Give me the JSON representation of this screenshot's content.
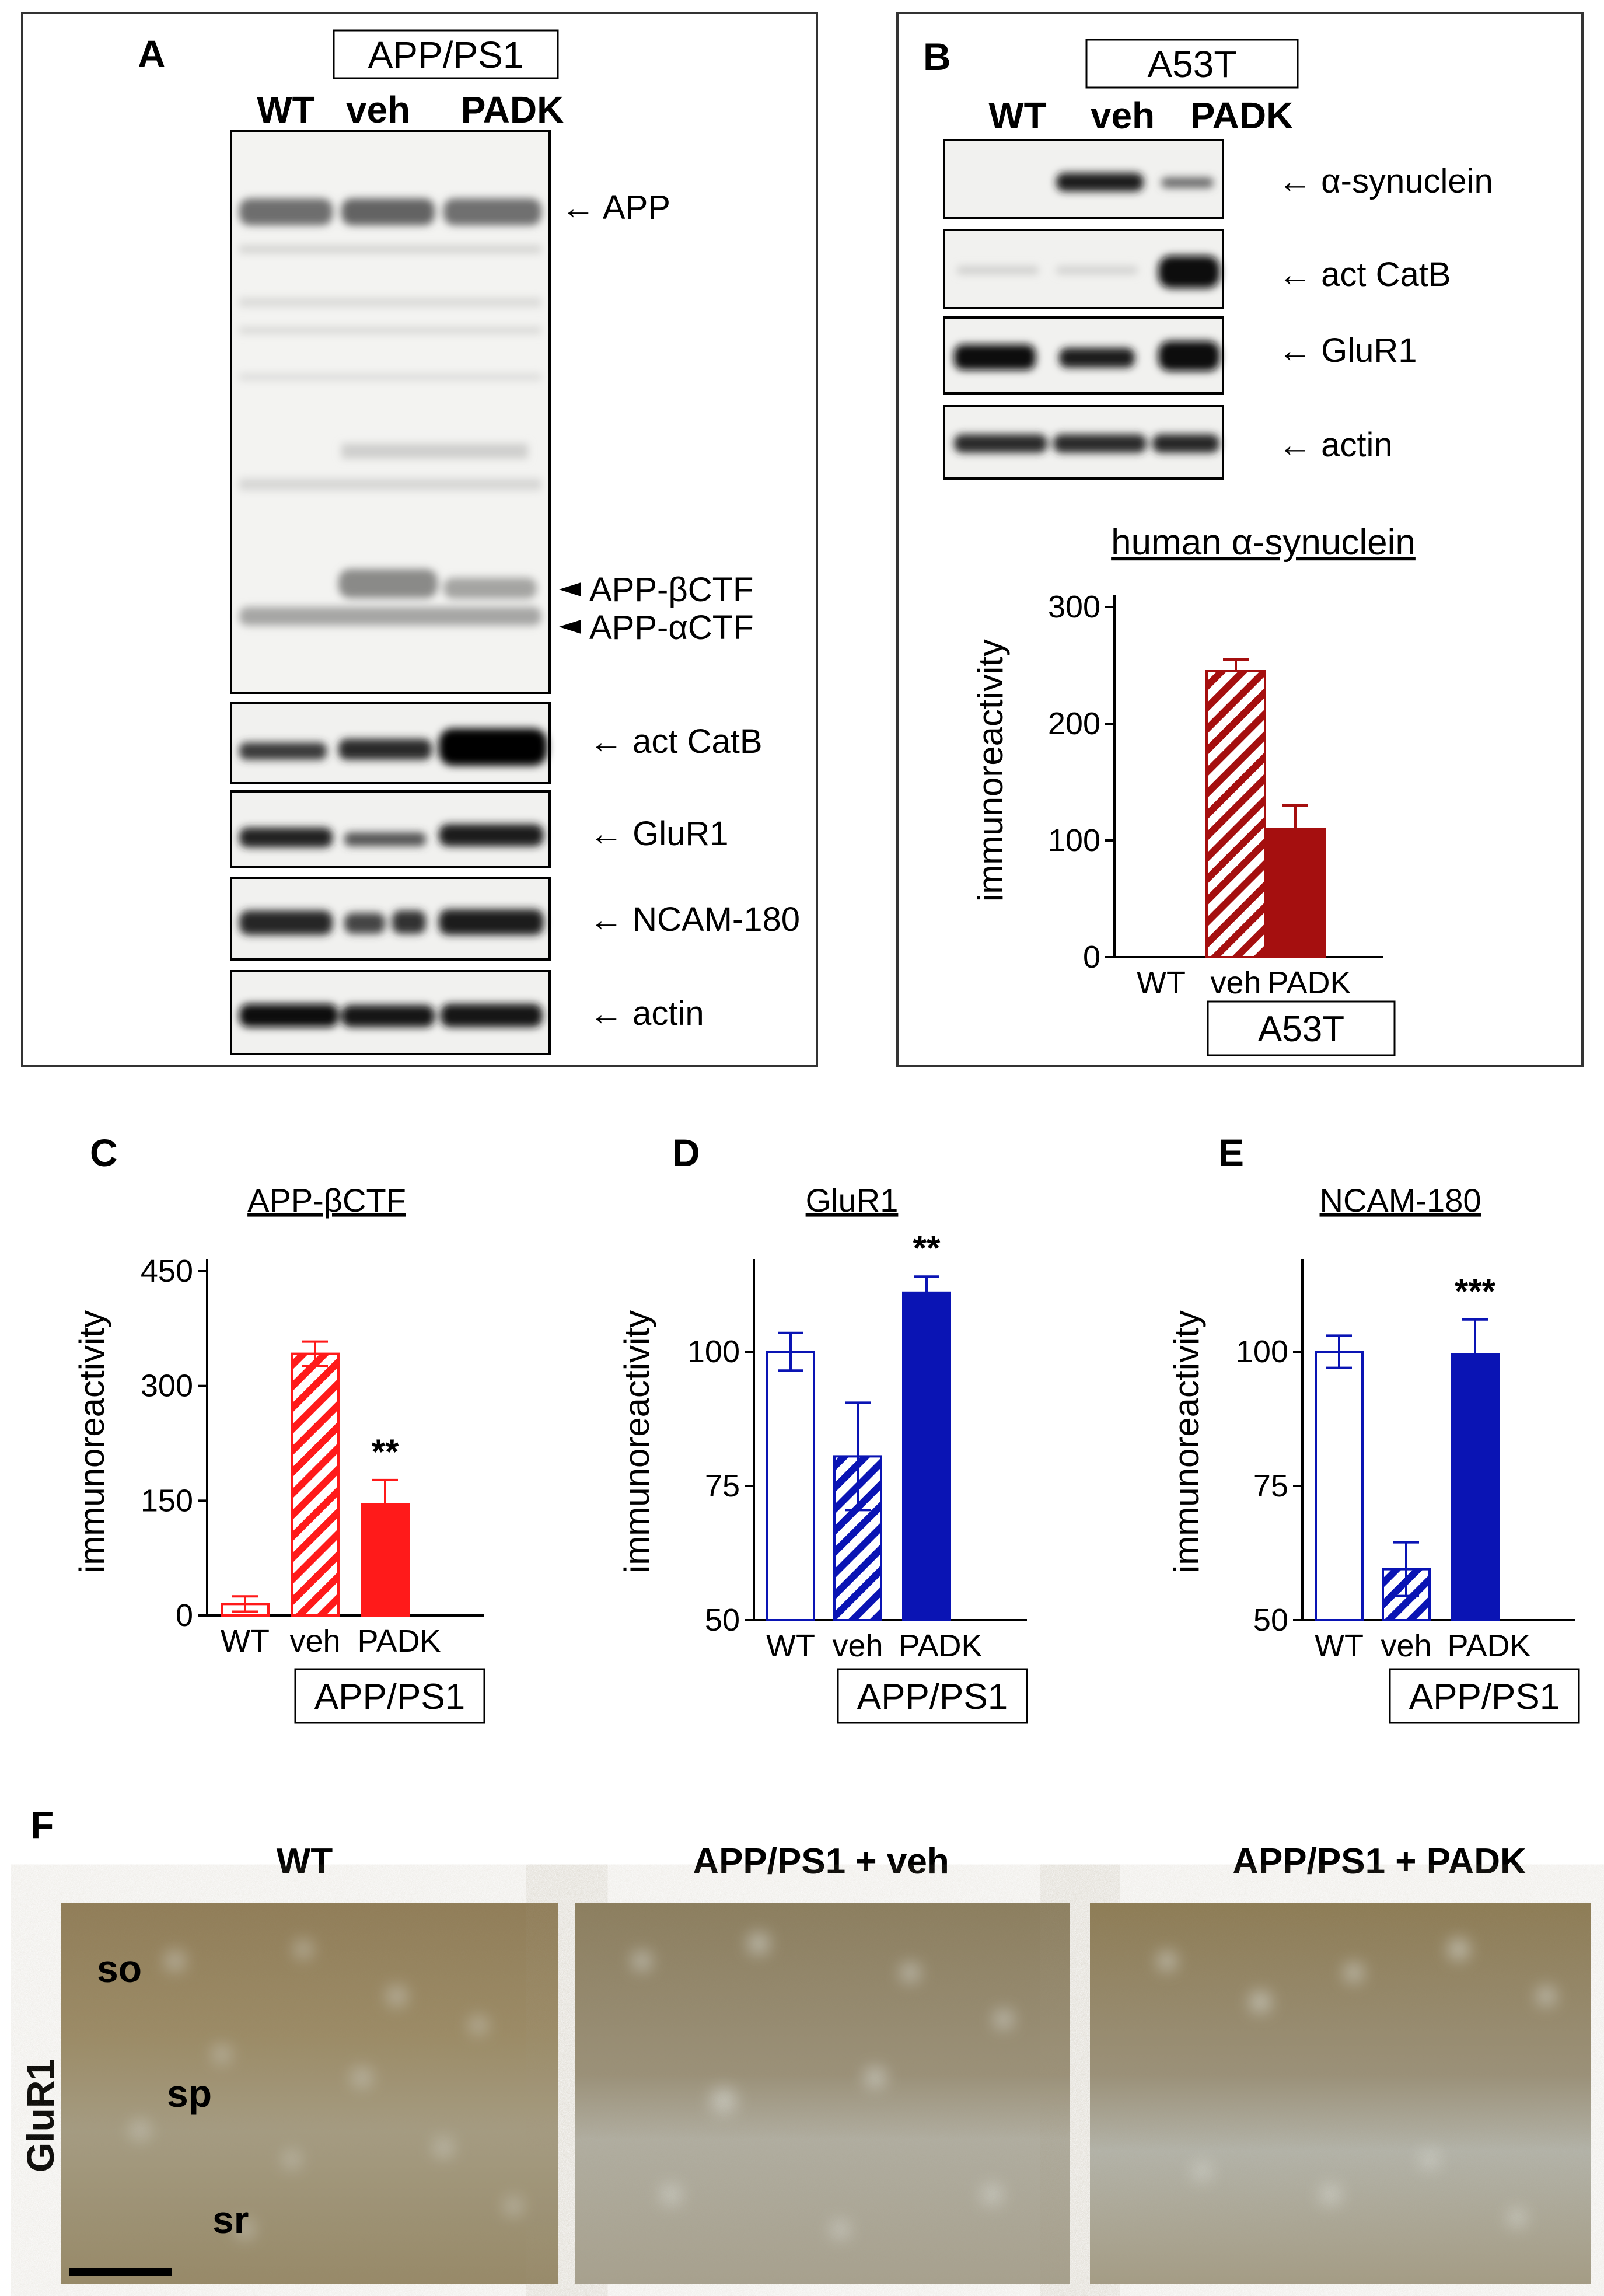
{
  "panel_a": {
    "letter": "A",
    "group": "APP/PS1",
    "lanes": [
      "WT",
      "veh",
      "PADK"
    ],
    "bands": [
      "APP",
      "APP-βCTF",
      "APP-αCTF",
      "act CatB",
      "GluR1",
      "NCAM-180",
      "actin"
    ]
  },
  "panel_b": {
    "letter": "B",
    "group": "A53T",
    "lanes": [
      "WT",
      "veh",
      "PADK"
    ],
    "bands": [
      "α-synuclein",
      "act CatB",
      "GluR1",
      "actin"
    ]
  },
  "panel_c": {
    "letter": "C"
  },
  "panel_d": {
    "letter": "D"
  },
  "panel_e": {
    "letter": "E"
  },
  "panel_f": {
    "letter": "F",
    "titles": [
      "WT",
      "APP/PS1 + veh",
      "APP/PS1 + PADK"
    ],
    "row_label": "GluR1",
    "regions": [
      "so",
      "sp",
      "sr"
    ]
  },
  "colors": {
    "red": "#ff1a1a",
    "dark_red": "#a50f0f",
    "blue": "#0a14b4"
  },
  "chart_data": [
    {
      "id": "B",
      "type": "bar",
      "title": "human α-synuclein",
      "ylabel": "immunoreactivity",
      "categories": [
        "WT",
        "veh",
        "PADK"
      ],
      "values": [
        0,
        245,
        110
      ],
      "errors": [
        0,
        10,
        20
      ],
      "ylim": [
        0,
        300
      ],
      "yticks": [
        0,
        100,
        200,
        300
      ],
      "group_label": "A53T",
      "significance": [
        "",
        "",
        ""
      ],
      "grid": false
    },
    {
      "id": "C",
      "type": "bar",
      "title": "APP-βCTF",
      "ylabel": "immunoreactivity",
      "categories": [
        "WT",
        "veh",
        "PADK"
      ],
      "values": [
        15,
        342,
        145
      ],
      "errors": [
        10,
        16,
        32
      ],
      "ylim": [
        0,
        450
      ],
      "yticks": [
        0,
        150,
        300,
        450
      ],
      "group_label": "APP/PS1",
      "significance": [
        "",
        "",
        "**"
      ],
      "grid": false
    },
    {
      "id": "D",
      "type": "bar",
      "title": "GluR1",
      "ylabel": "immunoreactivity",
      "categories": [
        "WT",
        "veh",
        "PADK"
      ],
      "values": [
        100,
        80.5,
        111
      ],
      "errors": [
        3.5,
        10,
        3
      ],
      "ylim": [
        50,
        115
      ],
      "yticks": [
        50,
        75,
        100
      ],
      "group_label": "APP/PS1",
      "significance": [
        "",
        "",
        "**"
      ],
      "grid": false
    },
    {
      "id": "E",
      "type": "bar",
      "title": "NCAM-180",
      "ylabel": "immunoreactivity",
      "categories": [
        "WT",
        "veh",
        "PADK"
      ],
      "values": [
        100,
        59.5,
        99.5
      ],
      "errors": [
        3,
        5,
        6.5
      ],
      "ylim": [
        50,
        115
      ],
      "yticks": [
        50,
        75,
        100
      ],
      "group_label": "APP/PS1",
      "significance": [
        "",
        "",
        "***"
      ],
      "grid": false
    }
  ]
}
